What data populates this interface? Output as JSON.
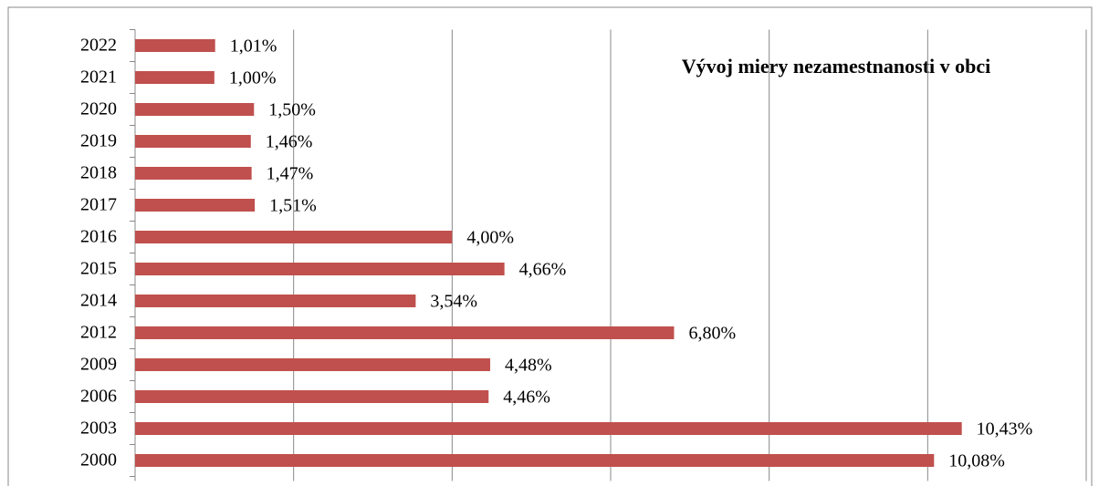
{
  "chart_data": {
    "type": "bar",
    "orientation": "horizontal",
    "title": "Vývoj miery nezamestnanosti v obci",
    "categories": [
      "2000",
      "2003",
      "2006",
      "2009",
      "2012",
      "2014",
      "2015",
      "2016",
      "2017",
      "2018",
      "2019",
      "2020",
      "2021",
      "2022"
    ],
    "values": [
      10.08,
      10.43,
      4.46,
      4.48,
      6.8,
      3.54,
      4.66,
      4.0,
      1.51,
      1.47,
      1.46,
      1.5,
      1.0,
      1.01
    ],
    "value_labels": [
      "10,08%",
      "10,43%",
      "4,46%",
      "4,48%",
      "6,80%",
      "3,54%",
      "4,66%",
      "4,00%",
      "1,51%",
      "1,47%",
      "1,46%",
      "1,50%",
      "1,00%",
      "1,01%"
    ],
    "color": "#c0504d",
    "xlim": [
      0,
      12
    ],
    "xticks": [
      0,
      2,
      4,
      6,
      8,
      10,
      12
    ],
    "grid": true
  }
}
